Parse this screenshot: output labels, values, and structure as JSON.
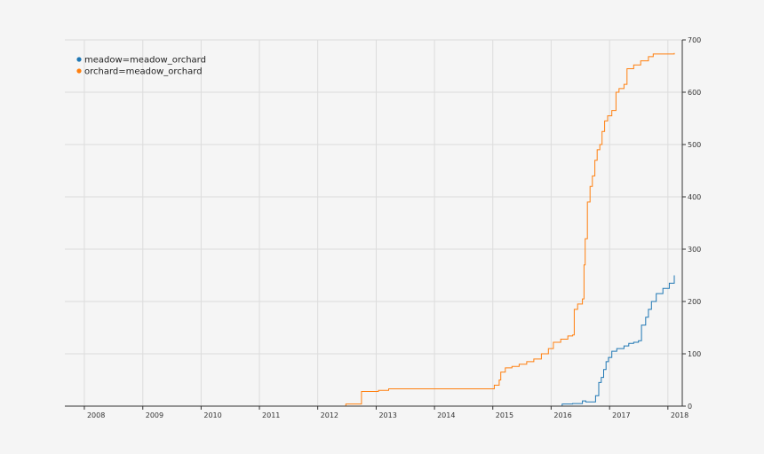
{
  "chart_data": {
    "type": "line",
    "title": "",
    "xlabel": "",
    "ylabel": "",
    "x_range": [
      "2007-09-01",
      "2018-04-01"
    ],
    "ylim": [
      0,
      700
    ],
    "x_ticks": [
      "2008",
      "2009",
      "2010",
      "2011",
      "2012",
      "2013",
      "2014",
      "2015",
      "2016",
      "2017",
      "2018"
    ],
    "y_ticks": [
      0,
      100,
      200,
      300,
      400,
      500,
      600,
      700
    ],
    "y_axis_side": "right",
    "grid": true,
    "legend_position": "top-left",
    "line_style": "step",
    "series": [
      {
        "name": "meadow=meadow_orchard",
        "color": "#1f77b4",
        "points": [
          [
            "2007-09-01",
            0
          ],
          [
            "2016-03-05",
            0
          ],
          [
            "2016-03-10",
            4
          ],
          [
            "2016-05-15",
            5
          ],
          [
            "2016-07-15",
            10
          ],
          [
            "2016-08-05",
            8
          ],
          [
            "2016-10-01",
            8
          ],
          [
            "2016-10-05",
            20
          ],
          [
            "2016-10-25",
            45
          ],
          [
            "2016-11-10",
            55
          ],
          [
            "2016-11-25",
            70
          ],
          [
            "2016-12-10",
            85
          ],
          [
            "2016-12-25",
            93
          ],
          [
            "2017-01-15",
            105
          ],
          [
            "2017-02-15",
            110
          ],
          [
            "2017-04-01",
            115
          ],
          [
            "2017-05-01",
            120
          ],
          [
            "2017-06-01",
            122
          ],
          [
            "2017-07-01",
            125
          ],
          [
            "2017-07-20",
            155
          ],
          [
            "2017-08-15",
            170
          ],
          [
            "2017-09-01",
            185
          ],
          [
            "2017-09-20",
            200
          ],
          [
            "2017-10-20",
            215
          ],
          [
            "2017-12-01",
            225
          ],
          [
            "2018-01-10",
            235
          ],
          [
            "2018-02-10",
            250
          ]
        ]
      },
      {
        "name": "orchard=meadow_orchard",
        "color": "#ff7f0e",
        "points": [
          [
            "2007-09-01",
            0
          ],
          [
            "2012-06-20",
            0
          ],
          [
            "2012-06-25",
            4
          ],
          [
            "2012-09-28",
            4
          ],
          [
            "2012-10-01",
            28
          ],
          [
            "2013-01-15",
            30
          ],
          [
            "2013-03-20",
            33
          ],
          [
            "2014-12-15",
            33
          ],
          [
            "2015-01-10",
            40
          ],
          [
            "2015-02-10",
            50
          ],
          [
            "2015-02-20",
            65
          ],
          [
            "2015-03-20",
            73
          ],
          [
            "2015-05-01",
            76
          ],
          [
            "2015-06-15",
            80
          ],
          [
            "2015-08-01",
            85
          ],
          [
            "2015-09-15",
            90
          ],
          [
            "2015-11-01",
            100
          ],
          [
            "2015-12-15",
            110
          ],
          [
            "2016-01-15",
            122
          ],
          [
            "2016-03-01",
            128
          ],
          [
            "2016-04-15",
            134
          ],
          [
            "2016-05-15",
            136
          ],
          [
            "2016-05-25",
            185
          ],
          [
            "2016-06-15",
            195
          ],
          [
            "2016-07-15",
            205
          ],
          [
            "2016-07-25",
            270
          ],
          [
            "2016-08-01",
            320
          ],
          [
            "2016-08-15",
            390
          ],
          [
            "2016-09-01",
            420
          ],
          [
            "2016-09-15",
            440
          ],
          [
            "2016-10-01",
            470
          ],
          [
            "2016-10-15",
            490
          ],
          [
            "2016-11-01",
            500
          ],
          [
            "2016-11-15",
            525
          ],
          [
            "2016-12-01",
            545
          ],
          [
            "2016-12-20",
            555
          ],
          [
            "2017-01-15",
            565
          ],
          [
            "2017-02-10",
            600
          ],
          [
            "2017-03-01",
            607
          ],
          [
            "2017-04-01",
            615
          ],
          [
            "2017-04-20",
            645
          ],
          [
            "2017-06-01",
            652
          ],
          [
            "2017-07-15",
            660
          ],
          [
            "2017-09-01",
            668
          ],
          [
            "2017-10-01",
            673
          ],
          [
            "2018-02-10",
            675
          ]
        ]
      }
    ]
  }
}
